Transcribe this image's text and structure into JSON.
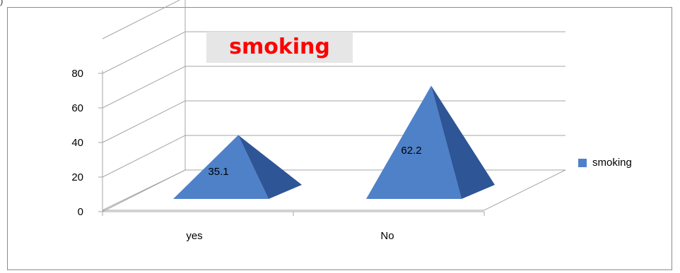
{
  "corner_mark": ")",
  "chart_data": {
    "type": "bar",
    "style": "3d-pyramid",
    "title": "smoking",
    "categories": [
      "yes",
      "No"
    ],
    "series": [
      {
        "name": "smoking",
        "values": [
          35.1,
          62.2
        ]
      }
    ],
    "data_labels": [
      "35.1",
      "62.2"
    ],
    "y_ticks": [
      "0",
      "20",
      "40",
      "60",
      "80"
    ],
    "ylim": [
      0,
      100
    ],
    "grid": true,
    "legend": "right",
    "colors": {
      "pyramid_front": "#4f81c9",
      "pyramid_side": "#2e5596",
      "title": "#ff0000",
      "title_bg": "#e6e6e6",
      "grid": "#a6a6a6"
    }
  }
}
